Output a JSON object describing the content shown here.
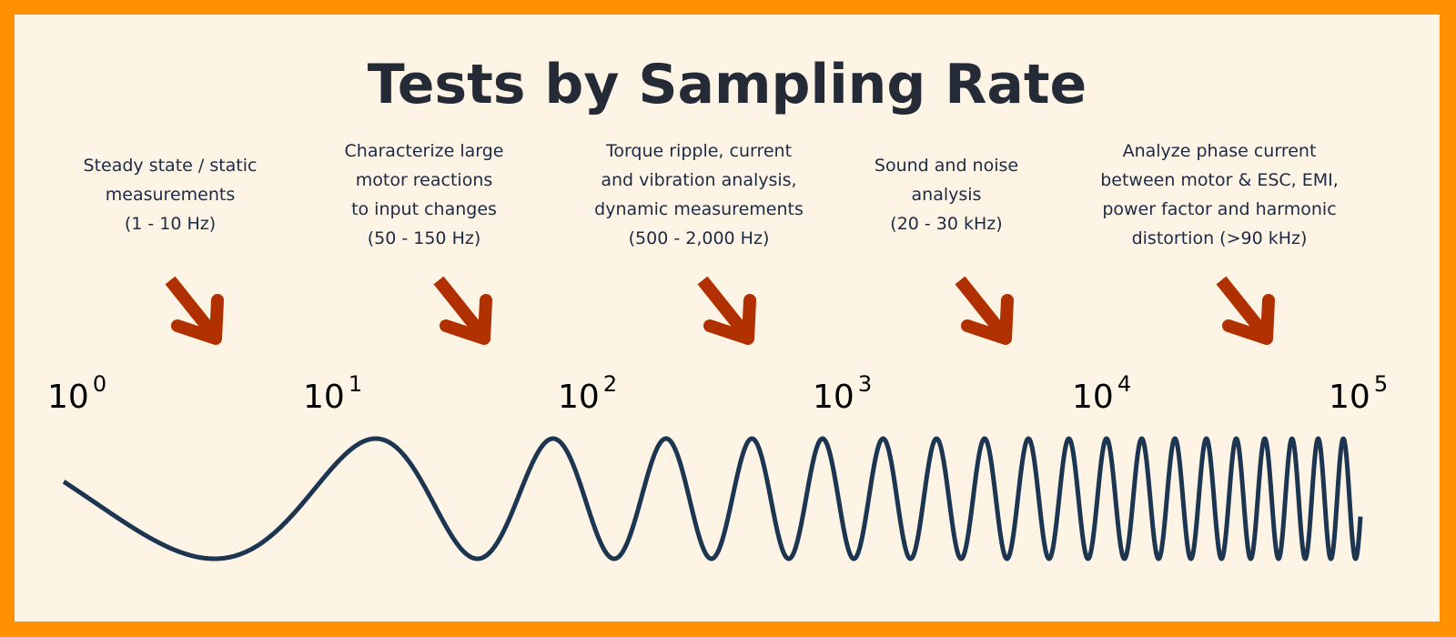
{
  "title": "Tests by Sampling Rate",
  "colors": {
    "border": "#ff9100",
    "background": "#fdf4e6",
    "arrow": "#b03000",
    "wave": "#1c3550",
    "text": "#1c2a44"
  },
  "descriptions": [
    {
      "lines": [
        "Steady state / static",
        "measurements",
        "(1 - 10 Hz)"
      ]
    },
    {
      "lines": [
        "Characterize large",
        "motor reactions",
        "to input changes",
        "(50 - 150 Hz)"
      ]
    },
    {
      "lines": [
        "Torque ripple, current",
        "and vibration analysis,",
        "dynamic measurements",
        "(500 - 2,000 Hz)"
      ]
    },
    {
      "lines": [
        "Sound and noise",
        "analysis",
        "(20 - 30 kHz)"
      ]
    },
    {
      "lines": [
        "Analyze phase current",
        "between motor & ESC, EMI,",
        "power factor and harmonic",
        "distortion (>90 kHz)"
      ]
    }
  ],
  "scale_ticks": [
    {
      "base": "10",
      "exp": "0"
    },
    {
      "base": "10",
      "exp": "1"
    },
    {
      "base": "10",
      "exp": "2"
    },
    {
      "base": "10",
      "exp": "3"
    },
    {
      "base": "10",
      "exp": "4"
    },
    {
      "base": "10",
      "exp": "5"
    }
  ],
  "icons": {
    "arrow": "arrow-down-right-icon",
    "wave": "chirp-wave"
  }
}
